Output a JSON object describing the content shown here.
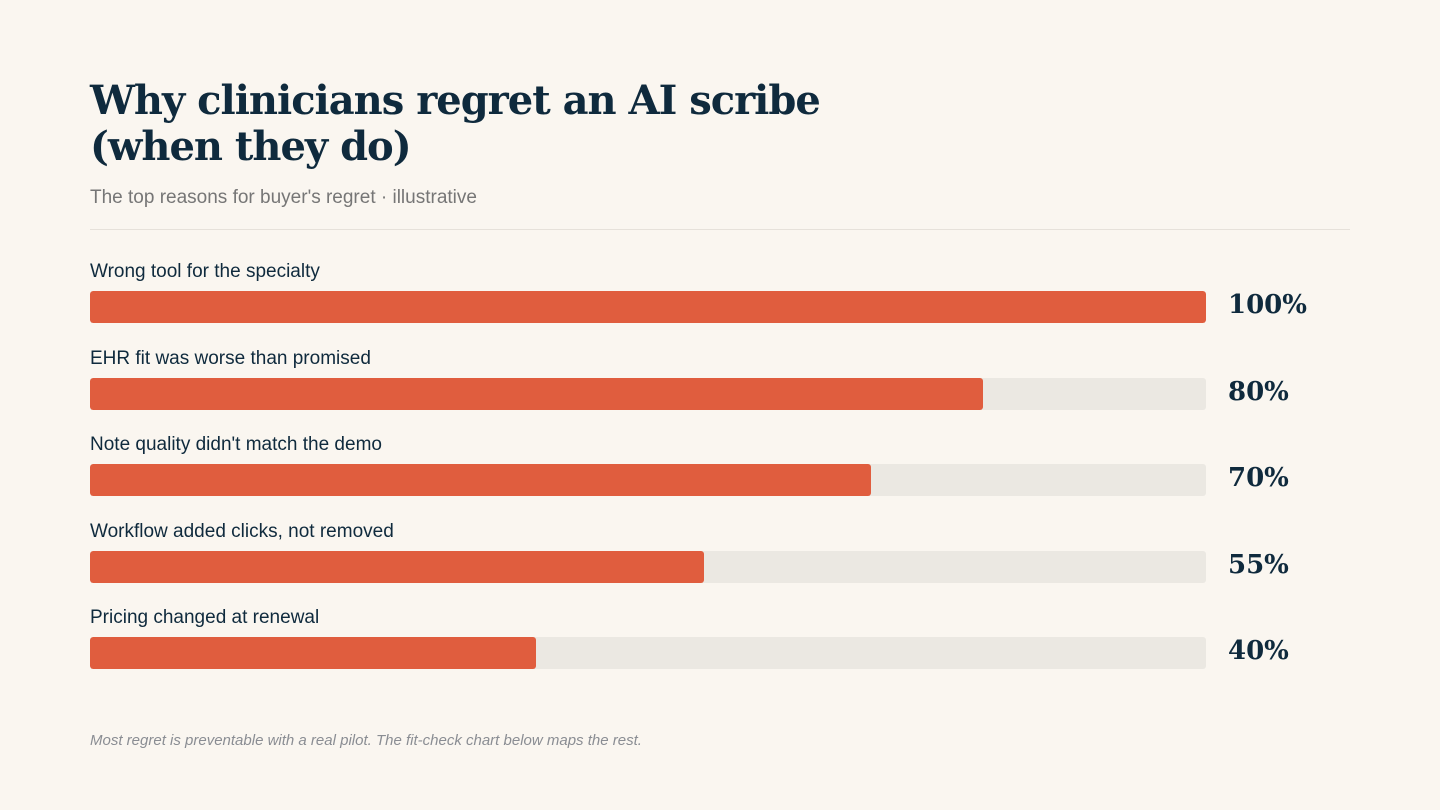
{
  "header": {
    "title_line1": "Why clinicians regret an AI scribe",
    "title_line2": "(when they do)",
    "subtitle": "The top reasons for buyer's regret · illustrative"
  },
  "footnote": "Most regret is preventable with a real pilot. The fit-check chart below maps the rest.",
  "colors": {
    "bar": "#e05d3e",
    "track": "#ebe8e2",
    "text": "#0f2a3d",
    "background": "#faf6f0"
  },
  "chart_data": {
    "type": "bar",
    "orientation": "horizontal",
    "title": "Why clinicians regret an AI scribe (when they do)",
    "subtitle": "The top reasons for buyer's regret · illustrative",
    "categories": [
      "Wrong tool for the specialty",
      "EHR fit was worse than promised",
      "Note quality didn't match the demo",
      "Workflow added clicks, not removed",
      "Pricing changed at renewal"
    ],
    "values": [
      100,
      80,
      70,
      55,
      40
    ],
    "value_labels": [
      "100%",
      "80%",
      "70%",
      "55%",
      "40%"
    ],
    "xlim": [
      0,
      100
    ],
    "grid": false,
    "legend": "none"
  }
}
